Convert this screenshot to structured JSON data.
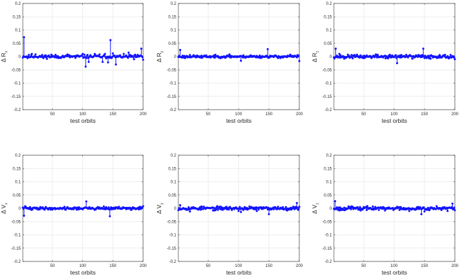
{
  "chart_data": [
    {
      "type": "stem",
      "xlabel": "test orbits",
      "ylabel": {
        "main": "Δ R",
        "sub": "x"
      },
      "xlim": [
        1,
        200
      ],
      "ylim": [
        -0.2,
        0.2
      ],
      "xticks": [
        50,
        100,
        150,
        200
      ],
      "yticks": [
        0.2,
        0.15,
        0.1,
        0.05,
        0,
        -0.05,
        -0.1,
        -0.15,
        -0.2
      ],
      "ytick_labels": [
        "0.2",
        "0.15",
        "0.1",
        "0.05",
        "0",
        "-0.05",
        "-0.1",
        "-0.15",
        "-0.2"
      ],
      "grid": true,
      "color": "#1414ff",
      "seed": 11,
      "noise": 0.004,
      "spikes": [
        [
          3,
          0.073
        ],
        [
          9,
          -0.006
        ],
        [
          16,
          0.01
        ],
        [
          22,
          0.008
        ],
        [
          35,
          -0.006
        ],
        [
          48,
          0.007
        ],
        [
          60,
          -0.006
        ],
        [
          75,
          0.008
        ],
        [
          88,
          -0.005
        ],
        [
          100,
          0.01
        ],
        [
          105,
          -0.038
        ],
        [
          110,
          -0.02
        ],
        [
          120,
          0.01
        ],
        [
          128,
          0.008
        ],
        [
          133,
          -0.02
        ],
        [
          137,
          0.01
        ],
        [
          142,
          -0.022
        ],
        [
          146,
          0.062
        ],
        [
          150,
          0.012
        ],
        [
          155,
          -0.03
        ],
        [
          168,
          0.01
        ],
        [
          176,
          0.015
        ],
        [
          185,
          -0.01
        ],
        [
          197,
          0.03
        ],
        [
          200,
          -0.012
        ]
      ]
    },
    {
      "type": "stem",
      "xlabel": "test orbits",
      "ylabel": {
        "main": "Δ R",
        "sub": "y"
      },
      "xlim": [
        1,
        200
      ],
      "ylim": [
        -0.2,
        0.2
      ],
      "xticks": [
        50,
        100,
        150,
        200
      ],
      "yticks": [
        0.2,
        0.15,
        0.1,
        0.05,
        0,
        -0.05,
        -0.1,
        -0.15,
        -0.2
      ],
      "ytick_labels": [
        "0.2",
        "0.15",
        "0.1",
        "0.05",
        "0",
        "-0.05",
        "-0.1",
        "-0.15",
        "-0.2"
      ],
      "grid": true,
      "color": "#1414ff",
      "seed": 23,
      "noise": 0.003,
      "spikes": [
        [
          4,
          0.025
        ],
        [
          12,
          -0.006
        ],
        [
          20,
          0.006
        ],
        [
          40,
          -0.005
        ],
        [
          60,
          0.005
        ],
        [
          85,
          0.008
        ],
        [
          104,
          -0.016
        ],
        [
          120,
          0.005
        ],
        [
          148,
          0.028
        ],
        [
          165,
          -0.006
        ],
        [
          185,
          0.007
        ],
        [
          197,
          0.006
        ],
        [
          200,
          -0.017
        ]
      ]
    },
    {
      "type": "stem",
      "xlabel": "test orbits",
      "ylabel": {
        "main": "Δ R",
        "sub": "z"
      },
      "xlim": [
        1,
        200
      ],
      "ylim": [
        -0.2,
        0.2
      ],
      "xticks": [
        50,
        100,
        150,
        200
      ],
      "yticks": [
        0.2,
        0.15,
        0.1,
        0.05,
        0,
        -0.05,
        -0.1,
        -0.15,
        -0.2
      ],
      "ytick_labels": [
        "0.2",
        "0.15",
        "0.1",
        "0.05",
        "0",
        "-0.05",
        "-0.1",
        "-0.15",
        "-0.2"
      ],
      "grid": true,
      "color": "#1414ff",
      "seed": 37,
      "noise": 0.004,
      "spikes": [
        [
          4,
          0.03
        ],
        [
          10,
          0.01
        ],
        [
          18,
          -0.008
        ],
        [
          30,
          0.006
        ],
        [
          50,
          -0.006
        ],
        [
          70,
          0.008
        ],
        [
          90,
          -0.007
        ],
        [
          105,
          -0.025
        ],
        [
          112,
          0.006
        ],
        [
          130,
          -0.008
        ],
        [
          140,
          0.006
        ],
        [
          148,
          0.03
        ],
        [
          160,
          -0.008
        ],
        [
          175,
          0.006
        ],
        [
          190,
          -0.007
        ],
        [
          200,
          -0.01
        ]
      ]
    },
    {
      "type": "stem",
      "xlabel": "test orbits",
      "ylabel": {
        "main": "Δ V",
        "sub": "x"
      },
      "xlim": [
        1,
        200
      ],
      "ylim": [
        -0.2,
        0.2
      ],
      "xticks": [
        50,
        100,
        150,
        200
      ],
      "yticks": [
        0.2,
        0.15,
        0.1,
        0.05,
        0,
        -0.05,
        -0.1,
        -0.15,
        -0.2
      ],
      "ytick_labels": [
        "0.2",
        "0.15",
        "0.1",
        "0.05",
        "0",
        "-0.05",
        "-0.1",
        "-0.15",
        "-0.2"
      ],
      "grid": true,
      "color": "#1414ff",
      "seed": 41,
      "noise": 0.003,
      "spikes": [
        [
          3,
          -0.028
        ],
        [
          5,
          0.008
        ],
        [
          15,
          -0.006
        ],
        [
          30,
          0.005
        ],
        [
          50,
          -0.005
        ],
        [
          70,
          0.006
        ],
        [
          90,
          -0.005
        ],
        [
          106,
          0.026
        ],
        [
          120,
          -0.006
        ],
        [
          135,
          0.007
        ],
        [
          145,
          -0.03
        ],
        [
          160,
          0.006
        ],
        [
          180,
          -0.006
        ],
        [
          195,
          0.006
        ],
        [
          200,
          0.008
        ]
      ]
    },
    {
      "type": "stem",
      "xlabel": "test orbits",
      "ylabel": {
        "main": "Δ V",
        "sub": "y"
      },
      "xlim": [
        1,
        200
      ],
      "ylim": [
        -0.2,
        0.2
      ],
      "xticks": [
        50,
        100,
        150,
        200
      ],
      "yticks": [
        0.2,
        0.15,
        0.1,
        0.05,
        0,
        -0.05,
        -0.1,
        -0.15,
        -0.2
      ],
      "ytick_labels": [
        "0.2",
        "0.15",
        "0.1",
        "0.05",
        "0",
        "-0.05",
        "-0.1",
        "-0.15",
        "-0.2"
      ],
      "grid": true,
      "color": "#1414ff",
      "seed": 53,
      "noise": 0.004,
      "spikes": [
        [
          4,
          0.012
        ],
        [
          20,
          -0.012
        ],
        [
          40,
          0.006
        ],
        [
          60,
          -0.008
        ],
        [
          80,
          0.006
        ],
        [
          100,
          -0.01
        ],
        [
          104,
          -0.014
        ],
        [
          118,
          0.007
        ],
        [
          130,
          -0.01
        ],
        [
          150,
          -0.022
        ],
        [
          165,
          0.006
        ],
        [
          180,
          -0.008
        ],
        [
          196,
          0.02
        ],
        [
          200,
          0.006
        ]
      ]
    },
    {
      "type": "stem",
      "xlabel": "test orbits",
      "ylabel": {
        "main": "Δ V",
        "sub": "z"
      },
      "xlim": [
        1,
        200
      ],
      "ylim": [
        -0.2,
        0.2
      ],
      "xticks": [
        50,
        100,
        150,
        200
      ],
      "yticks": [
        0.2,
        0.15,
        0.1,
        0.05,
        0,
        -0.05,
        -0.1,
        -0.15,
        -0.2
      ],
      "ytick_labels": [
        "0.2",
        "0.15",
        "0.1",
        "0.05",
        "0",
        "-0.05",
        "-0.1",
        "-0.15",
        "-0.2"
      ],
      "grid": true,
      "color": "#1414ff",
      "seed": 67,
      "noise": 0.004,
      "spikes": [
        [
          3,
          0.027
        ],
        [
          10,
          -0.008
        ],
        [
          25,
          0.007
        ],
        [
          45,
          -0.008
        ],
        [
          65,
          0.007
        ],
        [
          85,
          -0.008
        ],
        [
          105,
          0.006
        ],
        [
          125,
          -0.01
        ],
        [
          145,
          -0.022
        ],
        [
          150,
          -0.012
        ],
        [
          170,
          0.008
        ],
        [
          188,
          -0.01
        ],
        [
          196,
          0.018
        ],
        [
          200,
          -0.007
        ]
      ]
    }
  ]
}
